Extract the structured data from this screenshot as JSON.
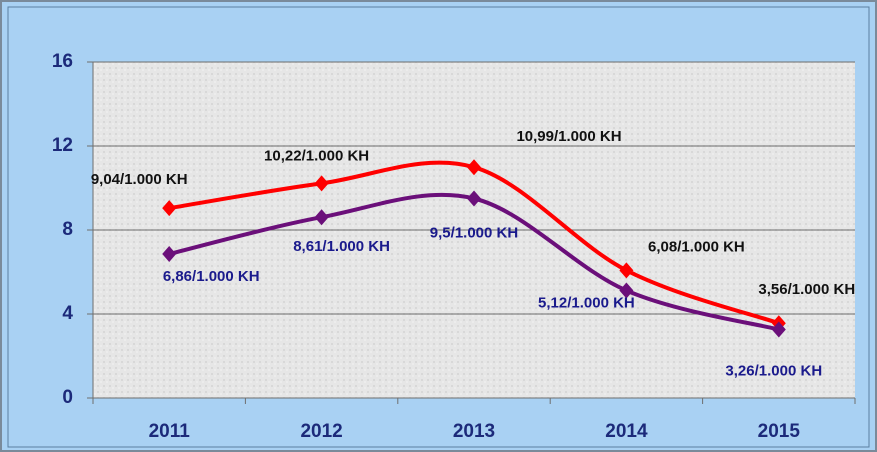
{
  "chart_data": {
    "type": "line",
    "categories": [
      "2011",
      "2012",
      "2013",
      "2014",
      "2015"
    ],
    "series": [
      {
        "color": "#ff0000",
        "label_color": "#111111",
        "values": [
          9.04,
          10.22,
          10.99,
          6.08,
          3.56
        ],
        "value_labels": [
          "9,04/1.000 KH",
          "10,22/1.000 KH",
          "10,99/1.000 KH",
          "6,08/1.000 KH",
          "3,56/1.000 KH"
        ]
      },
      {
        "color": "#6b0f7a",
        "label_color": "#1a1a8c",
        "values": [
          6.86,
          8.61,
          9.5,
          5.12,
          3.26
        ],
        "value_labels": [
          "6,86/1.000 KH",
          "8,61/1.000 KH",
          "9,5/1.000 KH",
          "5,12/1.000 KH",
          "3,26/1.000 KH"
        ]
      }
    ],
    "ylim": [
      0,
      16
    ],
    "yticks": [
      0,
      4,
      8,
      12,
      16
    ],
    "grid": true,
    "smooth": true
  }
}
